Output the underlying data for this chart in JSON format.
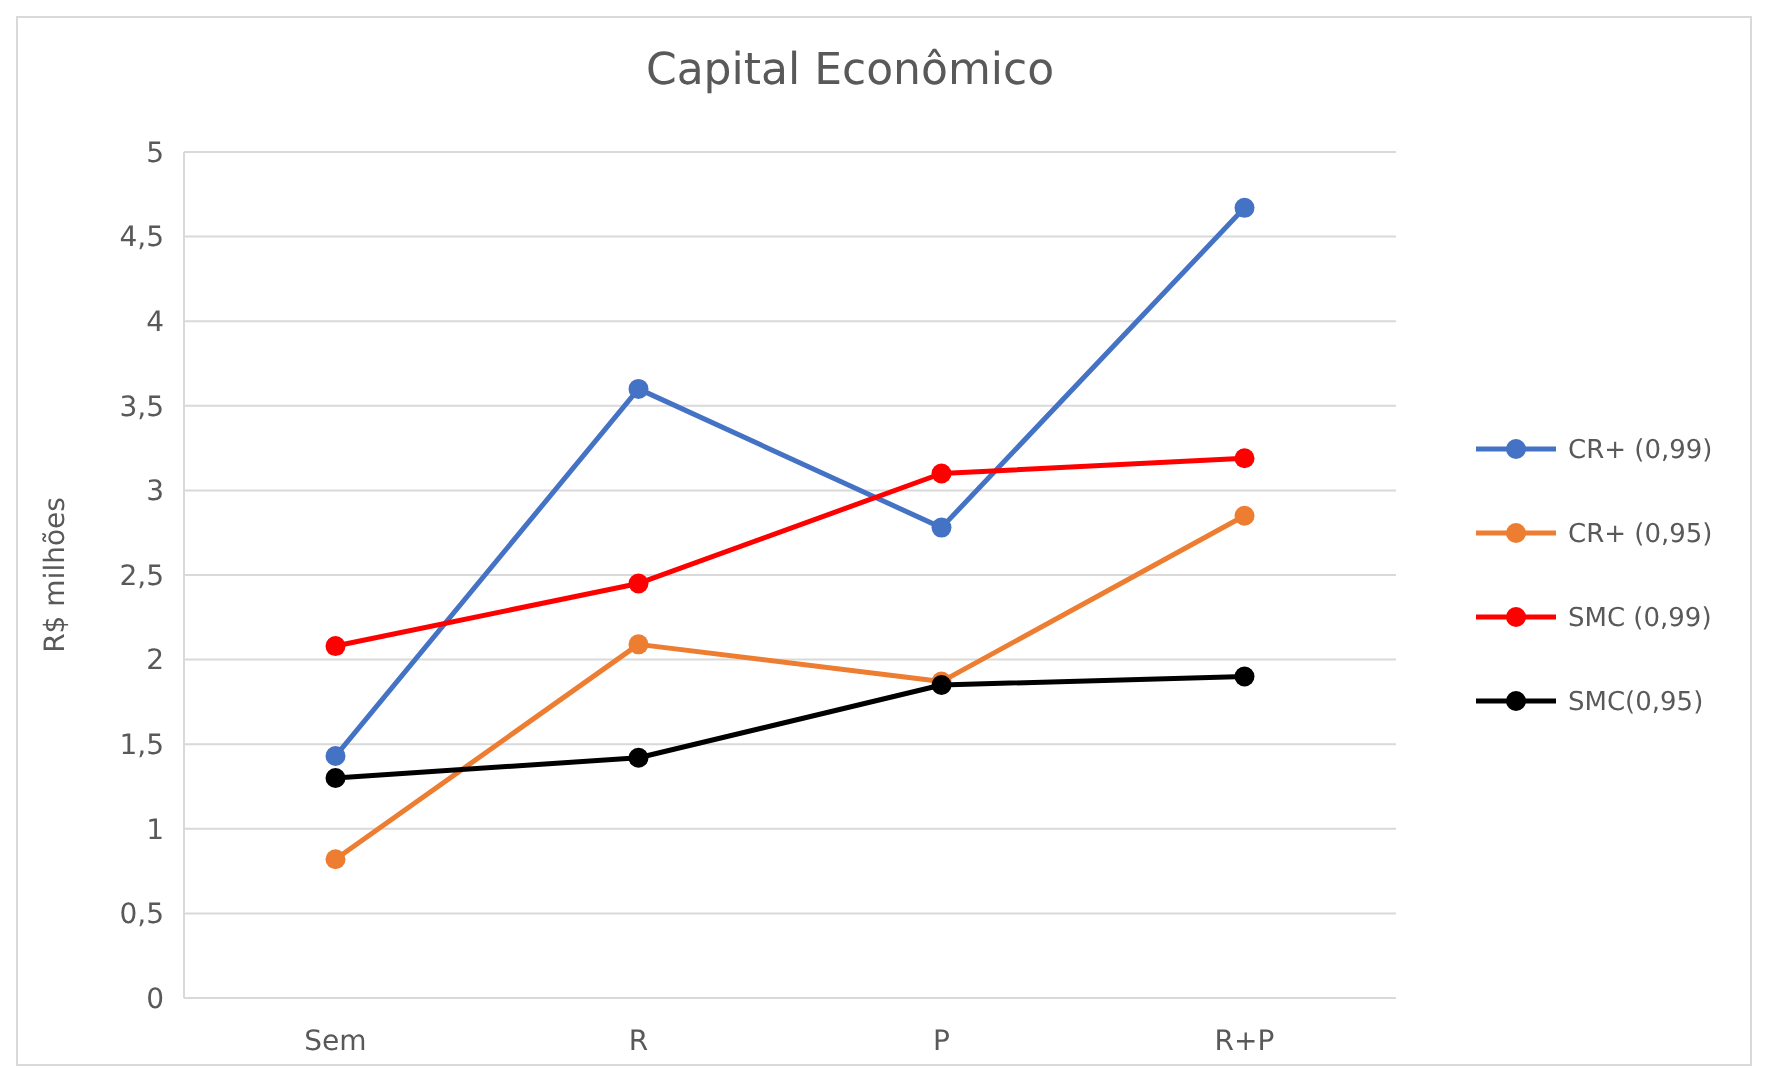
{
  "chart_data": {
    "type": "line",
    "title": "Capital Econômico",
    "ylabel": "R$ milhões",
    "categories": [
      "Sem",
      "R",
      "P",
      "R+P"
    ],
    "series": [
      {
        "name": "CR+ (0,99)",
        "color": "#4472c4",
        "values": [
          1.43,
          3.6,
          2.78,
          4.67
        ]
      },
      {
        "name": "CR+ (0,95)",
        "color": "#ed7d31",
        "values": [
          0.82,
          2.09,
          1.87,
          2.85
        ]
      },
      {
        "name": "SMC (0,99)",
        "color": "#ff0000",
        "values": [
          2.08,
          2.45,
          3.1,
          3.19
        ]
      },
      {
        "name": "SMC(0,95)",
        "color": "#000000",
        "values": [
          1.3,
          1.42,
          1.85,
          1.9
        ]
      }
    ],
    "ylim": [
      0,
      5
    ],
    "yticks": [
      {
        "value": 0,
        "label": "0"
      },
      {
        "value": 0.5,
        "label": "0,5"
      },
      {
        "value": 1,
        "label": "1"
      },
      {
        "value": 1.5,
        "label": "1,5"
      },
      {
        "value": 2,
        "label": "2"
      },
      {
        "value": 2.5,
        "label": "2,5"
      },
      {
        "value": 3,
        "label": "3"
      },
      {
        "value": 3.5,
        "label": "3,5"
      },
      {
        "value": 4,
        "label": "4"
      },
      {
        "value": 4.5,
        "label": "4,5"
      },
      {
        "value": 5,
        "label": "5"
      }
    ],
    "grid": "y",
    "legend": "right",
    "marker": "circle",
    "line_style": "solid"
  }
}
